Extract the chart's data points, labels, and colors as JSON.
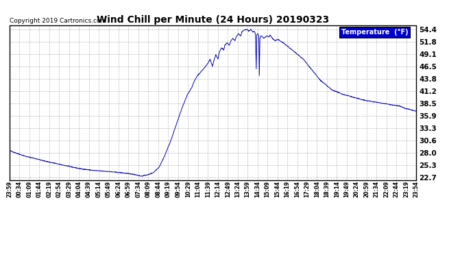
{
  "title": "Wind Chill per Minute (24 Hours) 20190323",
  "copyright": "Copyright 2019 Cartronics.com",
  "legend_label": "Temperature  (°F)",
  "yticks": [
    22.7,
    25.3,
    28.0,
    30.6,
    33.3,
    35.9,
    38.5,
    41.2,
    43.8,
    46.5,
    49.1,
    51.8,
    54.4
  ],
  "ymin": 22.7,
  "ymax": 54.4,
  "line_color": "#0000bb",
  "background_color": "#ffffff",
  "grid_color": "#aaaaaa",
  "title_color": "#000000",
  "copyright_color": "#000000",
  "legend_bg": "#0000cc",
  "legend_text_color": "#ffffff",
  "xtick_labels": [
    "23:59",
    "00:34",
    "01:09",
    "01:44",
    "02:19",
    "02:54",
    "03:29",
    "04:04",
    "04:39",
    "05:14",
    "05:49",
    "06:24",
    "06:59",
    "07:34",
    "08:09",
    "08:44",
    "09:19",
    "09:54",
    "10:29",
    "11:04",
    "11:39",
    "12:14",
    "12:49",
    "13:24",
    "13:59",
    "14:34",
    "15:09",
    "15:44",
    "16:19",
    "16:54",
    "17:29",
    "18:04",
    "18:39",
    "19:14",
    "19:49",
    "20:24",
    "20:59",
    "21:34",
    "22:09",
    "22:44",
    "23:19",
    "23:54"
  ],
  "figwidth": 6.9,
  "figheight": 3.75,
  "dpi": 100
}
